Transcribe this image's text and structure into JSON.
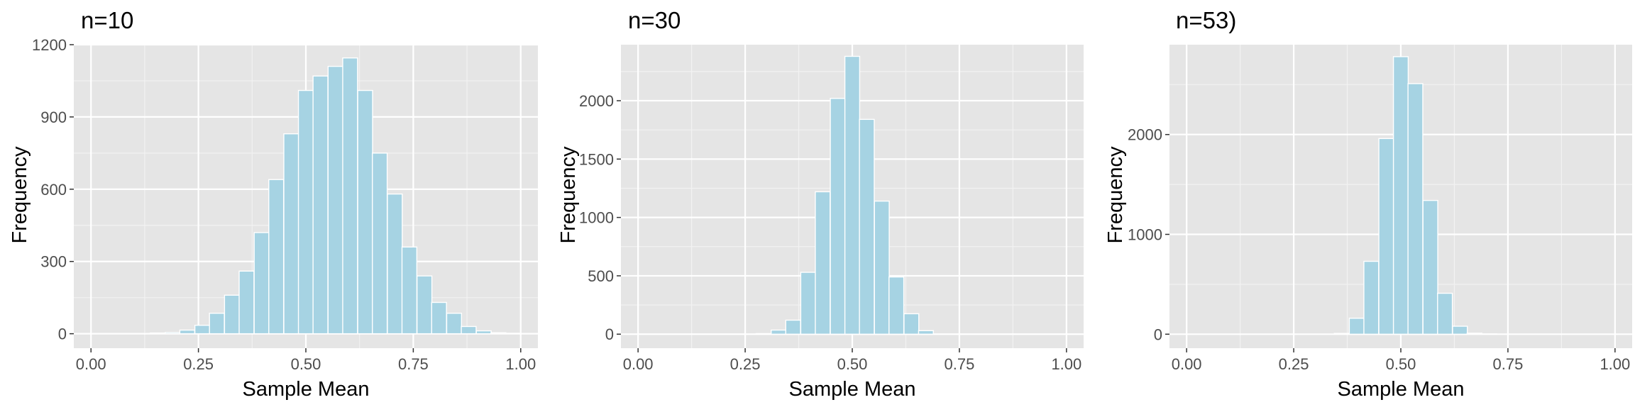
{
  "colors": {
    "panel_background": "#e5e5e5",
    "grid_major": "#ffffff",
    "grid_minor": "#f2f2f2",
    "bar_fill": "#a6d3e3",
    "bar_outline": "#ffffff",
    "tick_color": "#333333"
  },
  "chart_data": [
    {
      "type": "bar",
      "title": "n=10",
      "xlabel": "Sample Mean",
      "ylabel": "Frequency",
      "xlim": [
        -0.04,
        1.04
      ],
      "ylim": [
        -60,
        1200
      ],
      "xticks": [
        0,
        0.25,
        0.5,
        0.75,
        1
      ],
      "xtick_labels": [
        "0.00",
        "0.25",
        "0.50",
        "0.75",
        "1.00"
      ],
      "yticks": [
        0,
        300,
        600,
        900,
        1200
      ],
      "ytick_labels": [
        "0",
        "300",
        "600",
        "900",
        "1200"
      ],
      "grid": true,
      "bin_width": 0.0345,
      "bins": [
        0.155,
        0.19,
        0.224,
        0.259,
        0.293,
        0.328,
        0.362,
        0.397,
        0.431,
        0.466,
        0.5,
        0.534,
        0.569,
        0.603,
        0.638,
        0.672,
        0.707,
        0.741,
        0.776,
        0.81,
        0.845,
        0.879,
        0.914,
        0.948,
        0.983
      ],
      "values": [
        3,
        5,
        15,
        35,
        85,
        160,
        260,
        420,
        640,
        830,
        1010,
        1070,
        1110,
        1145,
        1010,
        750,
        580,
        360,
        240,
        130,
        85,
        30,
        12,
        4,
        2
      ]
    },
    {
      "type": "bar",
      "title": "n=30",
      "xlabel": "Sample Mean",
      "ylabel": "Frequency",
      "xlim": [
        -0.04,
        1.04
      ],
      "ylim": [
        -120,
        2480
      ],
      "xticks": [
        0,
        0.25,
        0.5,
        0.75,
        1
      ],
      "xtick_labels": [
        "0.00",
        "0.25",
        "0.50",
        "0.75",
        "1.00"
      ],
      "yticks": [
        0,
        500,
        1000,
        1500,
        2000
      ],
      "ytick_labels": [
        "0",
        "500",
        "1000",
        "1500",
        "2000"
      ],
      "grid": true,
      "bin_width": 0.0345,
      "bins": [
        0.293,
        0.328,
        0.362,
        0.397,
        0.431,
        0.466,
        0.5,
        0.534,
        0.569,
        0.603,
        0.638,
        0.672
      ],
      "values": [
        5,
        35,
        120,
        530,
        1220,
        2020,
        2380,
        1840,
        1140,
        490,
        175,
        30
      ]
    },
    {
      "type": "bar",
      "title": "n=53)",
      "xlabel": "Sample Mean",
      "ylabel": "Frequency",
      "xlim": [
        -0.04,
        1.04
      ],
      "ylim": [
        -140,
        2900
      ],
      "xticks": [
        0,
        0.25,
        0.5,
        0.75,
        1
      ],
      "xtick_labels": [
        "0.00",
        "0.25",
        "0.50",
        "0.75",
        "1.00"
      ],
      "yticks": [
        0,
        1000,
        2000
      ],
      "ytick_labels": [
        "0",
        "1000",
        "2000"
      ],
      "grid": true,
      "bin_width": 0.0345,
      "bins": [
        0.362,
        0.397,
        0.431,
        0.466,
        0.5,
        0.534,
        0.569,
        0.603,
        0.638,
        0.672,
        0.707
      ],
      "values": [
        8,
        160,
        730,
        1960,
        2780,
        2510,
        1340,
        410,
        80,
        10,
        3
      ]
    }
  ]
}
